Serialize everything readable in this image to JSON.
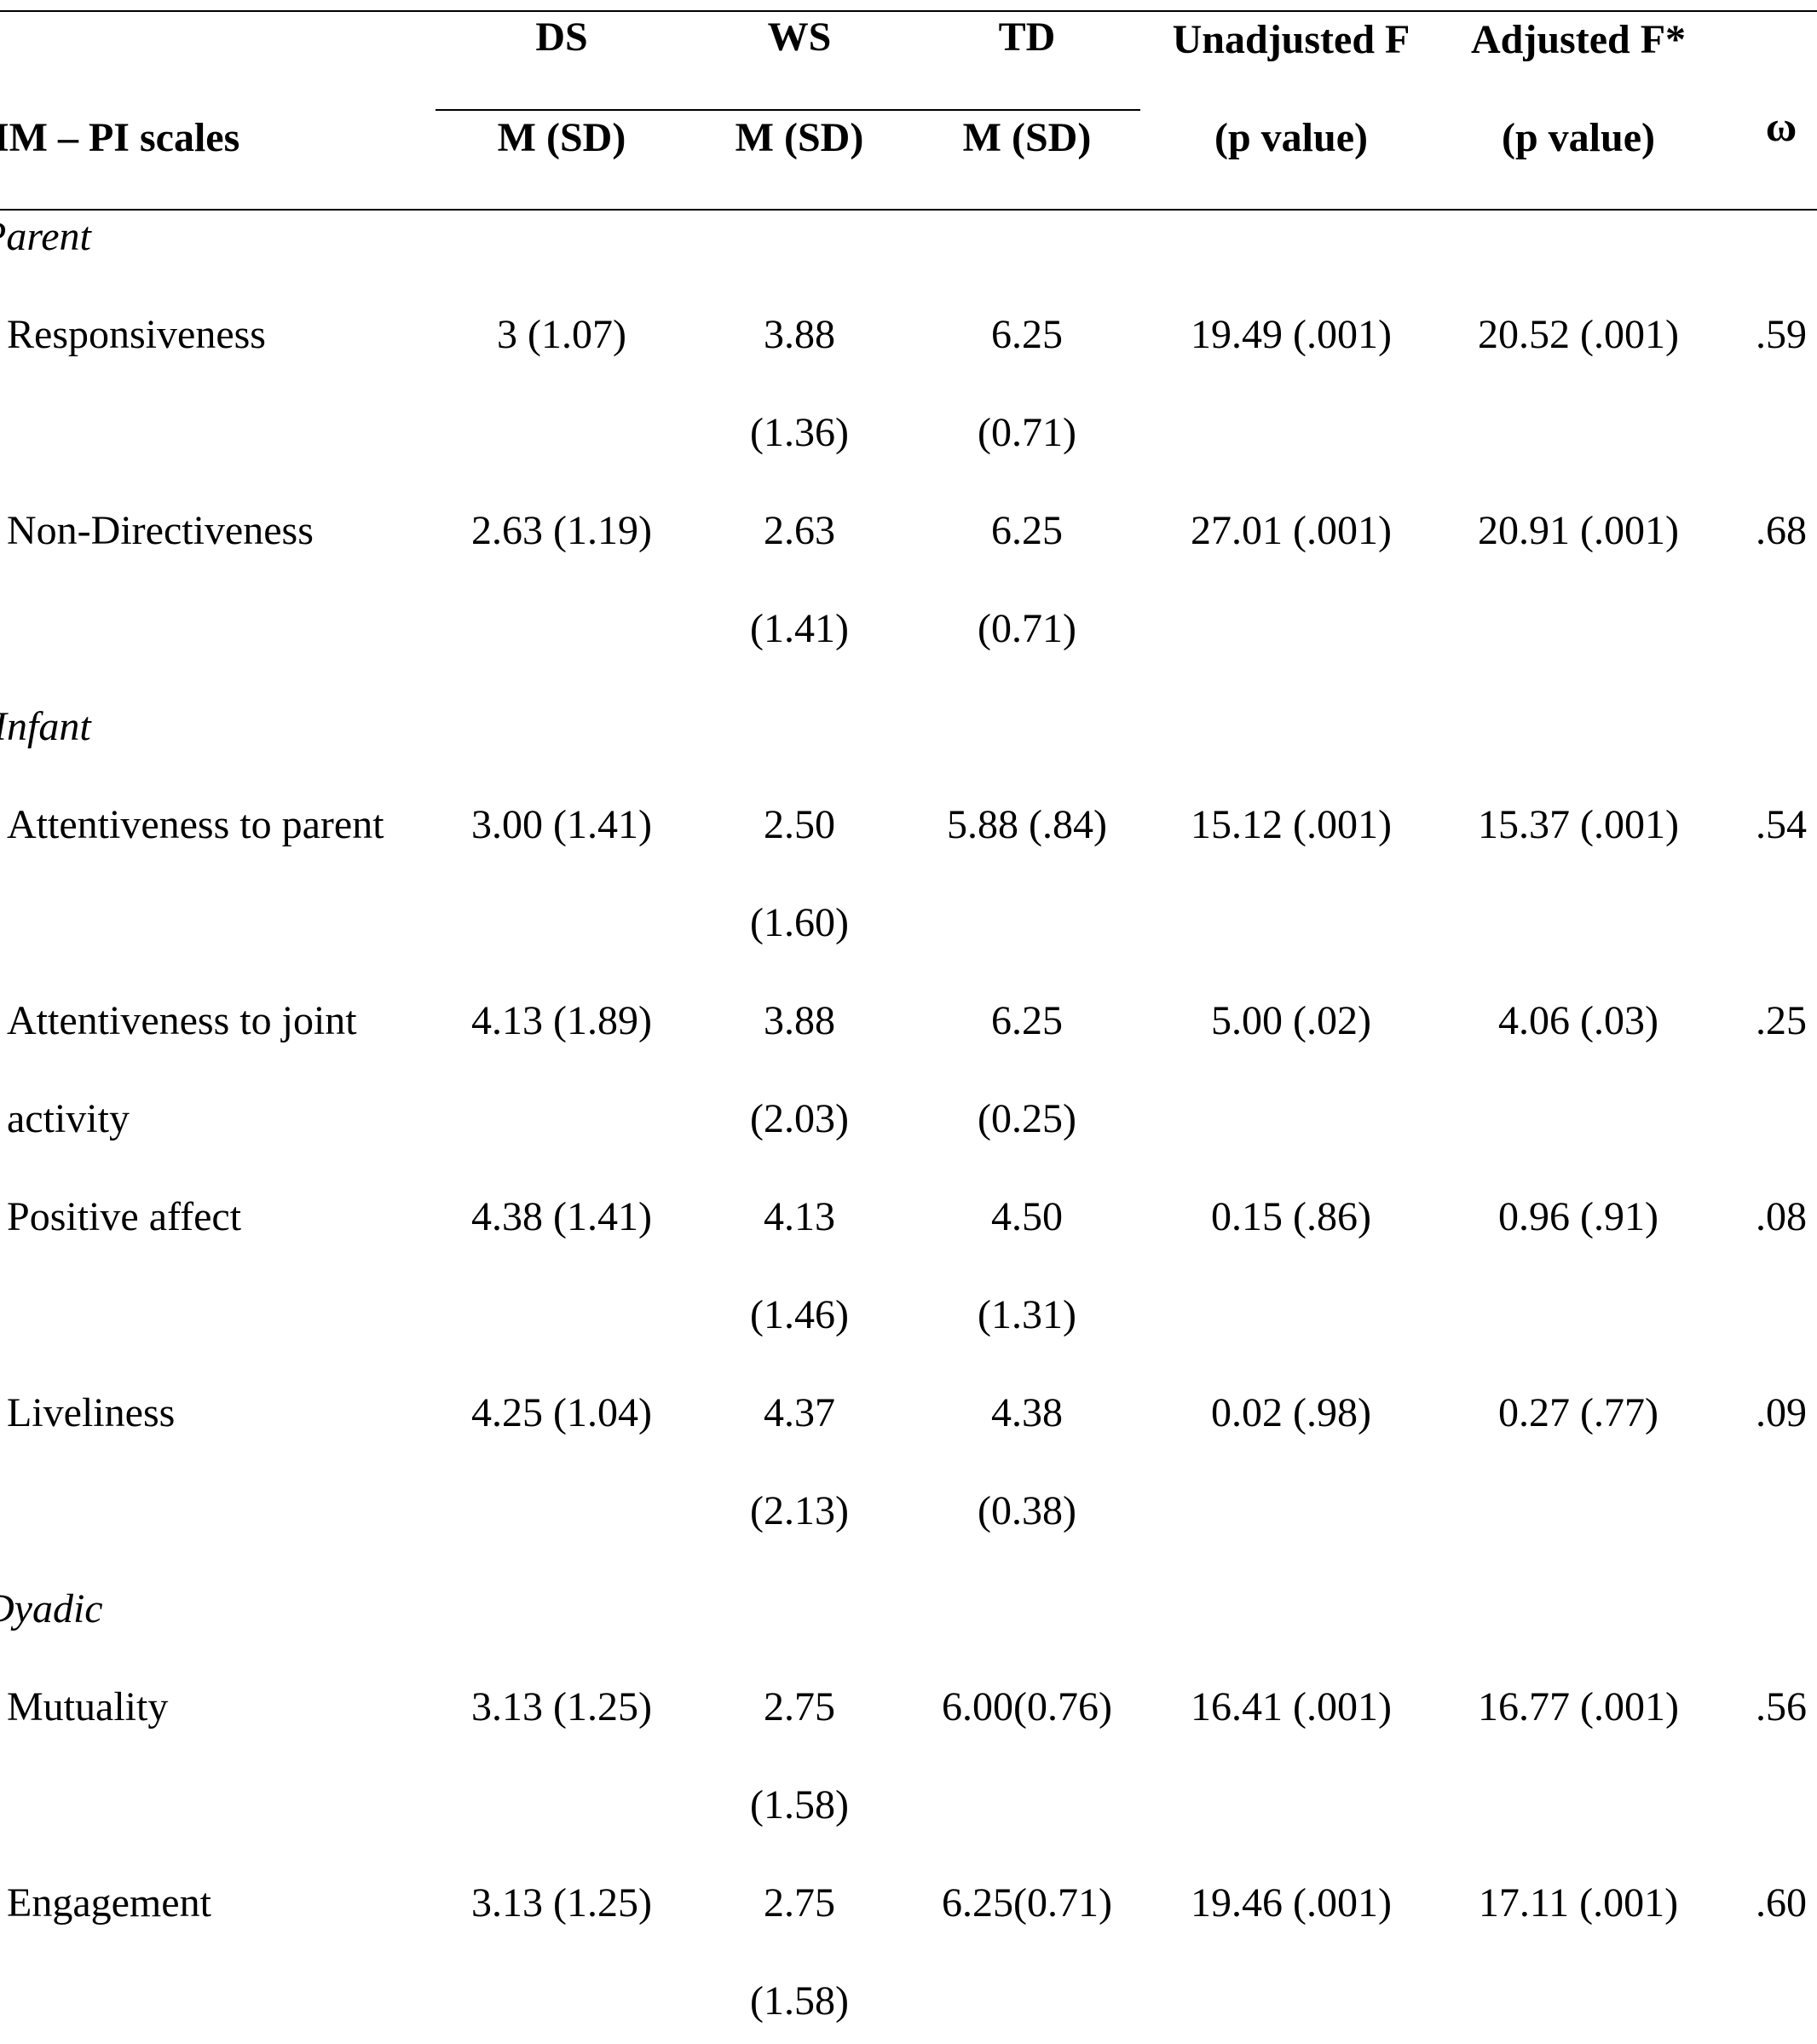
{
  "table": {
    "header": {
      "scale_col": "IM – PI scales",
      "groups": [
        "DS",
        "WS",
        "TD"
      ],
      "group_sub": [
        "M (SD)",
        "M (SD)",
        "M (SD)"
      ],
      "unadjusted": [
        "Unadjusted F",
        "(p value)"
      ],
      "adjusted": [
        "Adjusted F*",
        "(p value)"
      ],
      "omega": "ω"
    },
    "sections": [
      {
        "label": "Parent",
        "rows": [
          {
            "scale": [
              "Responsiveness"
            ],
            "ds": [
              "3 (1.07)"
            ],
            "ws": [
              "3.88",
              "(1.36)"
            ],
            "td": [
              "6.25",
              "(0.71)"
            ],
            "unadj": "19.49 (.001)",
            "adj": "20.52 (.001)",
            "omega": ".59"
          },
          {
            "scale": [
              "Non-Directiveness"
            ],
            "ds": [
              "2.63 (1.19)"
            ],
            "ws": [
              "2.63",
              "(1.41)"
            ],
            "td": [
              "6.25",
              "(0.71)"
            ],
            "unadj": "27.01 (.001)",
            "adj": "20.91 (.001)",
            "omega": ".68"
          }
        ]
      },
      {
        "label": "Infant",
        "rows": [
          {
            "scale": [
              "Attentiveness to parent"
            ],
            "ds": [
              "3.00 (1.41)"
            ],
            "ws": [
              "2.50",
              "(1.60)"
            ],
            "td": [
              "5.88 (.84)"
            ],
            "unadj": "15.12 (.001)",
            "adj": "15.37 (.001)",
            "omega": ".54"
          },
          {
            "scale": [
              "Attentiveness to joint",
              "activity"
            ],
            "ds": [
              "4.13 (1.89)"
            ],
            "ws": [
              "3.88",
              "(2.03)"
            ],
            "td": [
              "6.25",
              "(0.25)"
            ],
            "unadj": "5.00 (.02)",
            "adj": "4.06 (.03)",
            "omega": ".25"
          },
          {
            "scale": [
              "Positive affect"
            ],
            "ds": [
              "4.38 (1.41)"
            ],
            "ws": [
              "4.13",
              "(1.46)"
            ],
            "td": [
              "4.50",
              "(1.31)"
            ],
            "unadj": "0.15 (.86)",
            "adj": "0.96 (.91)",
            "omega": ".08"
          },
          {
            "scale": [
              "Liveliness"
            ],
            "ds": [
              "4.25 (1.04)"
            ],
            "ws": [
              "4.37",
              "(2.13)"
            ],
            "td": [
              "4.38",
              "(0.38)"
            ],
            "unadj": "0.02 (.98)",
            "adj": "0.27 (.77)",
            "omega": ".09"
          }
        ]
      },
      {
        "label": "Dyadic",
        "rows": [
          {
            "scale": [
              "Mutuality"
            ],
            "ds": [
              "3.13 (1.25)"
            ],
            "ws": [
              "2.75",
              "(1.58)"
            ],
            "td": [
              "6.00(0.76)"
            ],
            "unadj": "16.41 (.001)",
            "adj": "16.77 (.001)",
            "omega": ".56"
          },
          {
            "scale": [
              "Engagement"
            ],
            "ds": [
              "3.13 (1.25)"
            ],
            "ws": [
              "2.75",
              "(1.58)"
            ],
            "td": [
              "6.25(0.71)"
            ],
            "unadj": "19.46 (.001)",
            "adj": "17.11 (.001)",
            "omega": ".60"
          }
        ]
      }
    ]
  }
}
